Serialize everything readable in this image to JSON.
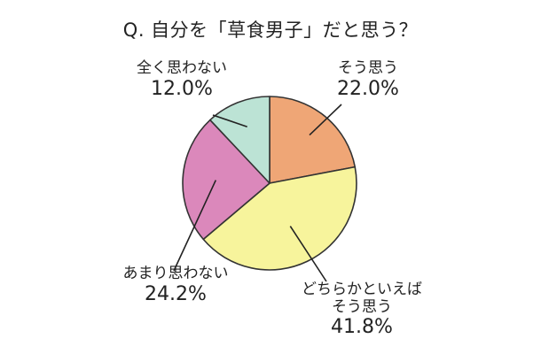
{
  "chart_data": {
    "type": "pie",
    "title": "Q. 自分を「草食男子」だと思う？",
    "start_angle_deg": 90,
    "direction": "clockwise",
    "slices": [
      {
        "name": "そう思う",
        "value": 22.0,
        "display": "22.0%",
        "color": "#EFA676"
      },
      {
        "name": "どちらかといえばそう思う",
        "name_lines": [
          "どちらかといえば",
          "そう思う"
        ],
        "value": 41.8,
        "display": "41.8%",
        "color": "#F7F49C"
      },
      {
        "name": "あまり思わない",
        "value": 24.2,
        "display": "24.2%",
        "color": "#DB88BB"
      },
      {
        "name": "全く思わない",
        "value": 12.0,
        "display": "12.0%",
        "color": "#BCE3D5"
      }
    ]
  },
  "colors": {
    "stroke": "#333333",
    "leader": "#222222"
  }
}
